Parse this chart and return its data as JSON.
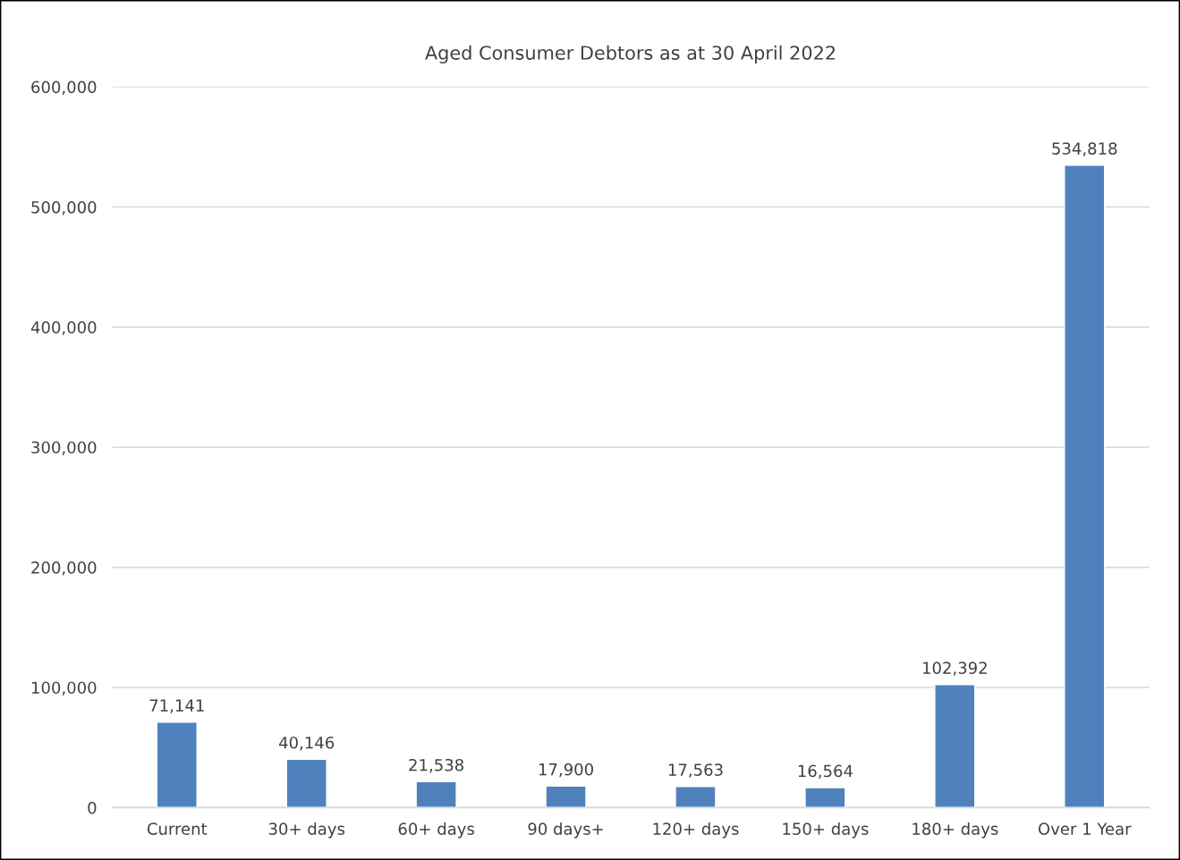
{
  "chart_data": {
    "type": "bar",
    "title": "Aged Consumer Debtors as at 30 April 2022",
    "categories": [
      "Current",
      "30+ days",
      "60+ days",
      "90 days+",
      "120+ days",
      "150+ days",
      "180+ days",
      "Over 1 Year"
    ],
    "values": [
      71141,
      40146,
      21538,
      17900,
      17563,
      16564,
      102392,
      534818
    ],
    "value_labels": [
      "71,141",
      "40,146",
      "21,538",
      "17,900",
      "17,563",
      "16,564",
      "102,392",
      "534,818"
    ],
    "color": "#4f81bd",
    "ylim": [
      0,
      600000
    ],
    "yticks": [
      {
        "value": 0,
        "label": "0"
      },
      {
        "value": 100000,
        "label": "100,000"
      },
      {
        "value": 200000,
        "label": "200,000"
      },
      {
        "value": 300000,
        "label": "300,000"
      },
      {
        "value": 400000,
        "label": "400,000"
      },
      {
        "value": 500000,
        "label": "500,000"
      },
      {
        "value": 600000,
        "label": "600,000"
      }
    ],
    "grid": "y"
  }
}
